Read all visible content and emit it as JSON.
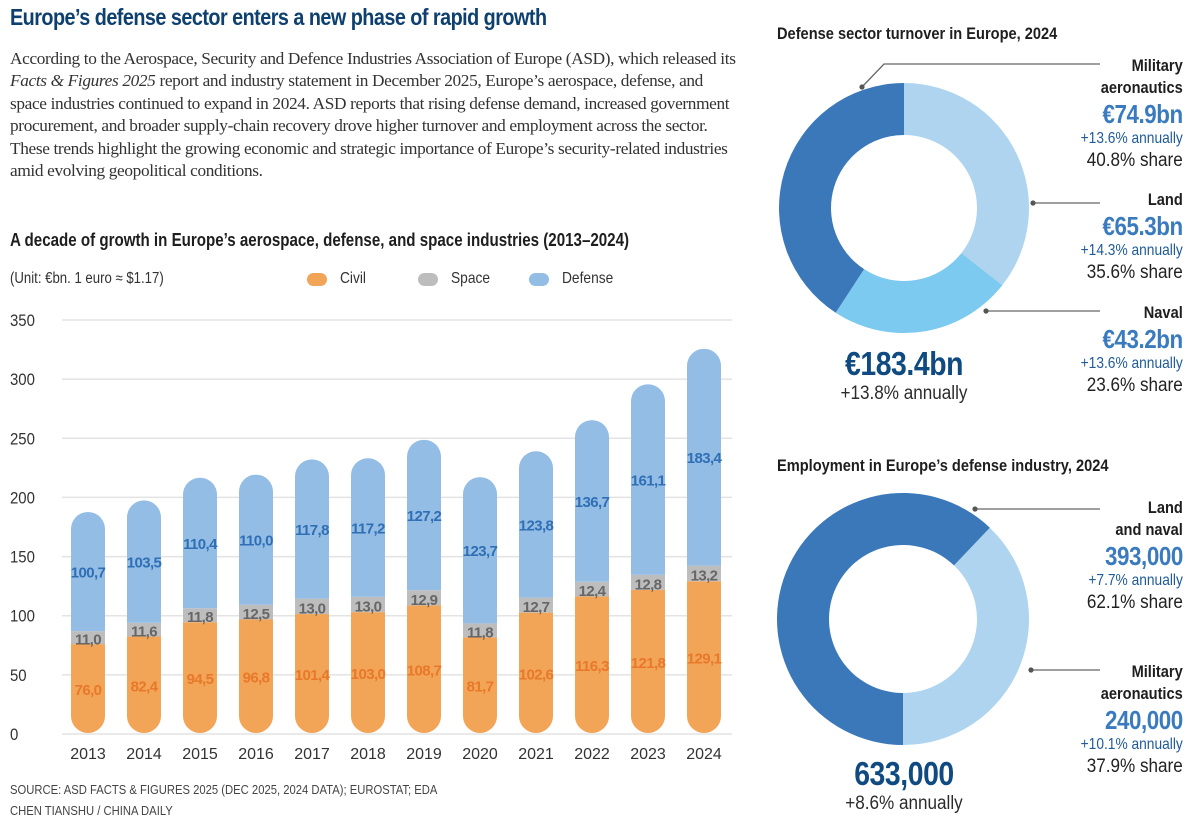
{
  "header": {
    "title": "Europe’s defense sector enters a new phase of rapid growth",
    "intro_part1": "According to the Aerospace, Security and Defence Industries Association of Europe (ASD), which released its ",
    "intro_italic": "Facts & Figures 2025",
    "intro_part2": " report and industry statement in December 2025, Europe’s aerospace, defense, and space industries continued to expand in 2024. ASD reports that rising defense demand, increased government procurement, and broader supply-chain recovery drove higher turnover and employment across the sector. These trends highlight the growing economic and strategic importance of Europe’s security-related industries amid evolving geopolitical conditions."
  },
  "footer": {
    "source": "SOURCE: ASD FACTS & FIGURES 2025 (DEC 2025, 2024 DATA); EUROSTAT; EDA",
    "credit": "CHEN TIANSHU / CHINA DAILY"
  },
  "colors": {
    "civil": "#f2a457",
    "space": "#bdbdbd",
    "defense": "#93bde4",
    "civil_label": "#e8782a",
    "space_label": "#666666",
    "defense_label": "#2f6fb5",
    "dark_blue": "#3a78b9",
    "light_blue": "#aed4ef",
    "mid_blue": "#7ccaef",
    "grid": "#e3e3e3"
  },
  "chart_data": [
    {
      "type": "bar",
      "stacked": true,
      "title": "A decade of growth in Europe’s aerospace, defense, and space industries (2013–2024)",
      "unit_note": "(Unit: €bn. 1 euro ≈ $1.17)",
      "xlabel": "",
      "ylabel": "",
      "ylim": [
        0,
        350
      ],
      "yticks": [
        0,
        50,
        100,
        150,
        200,
        250,
        300,
        350
      ],
      "grid": true,
      "legend_position": "top-center",
      "categories": [
        "2013",
        "2014",
        "2015",
        "2016",
        "2017",
        "2018",
        "2019",
        "2020",
        "2021",
        "2022",
        "2023",
        "2024"
      ],
      "series": [
        {
          "name": "Civil",
          "color_key": "civil",
          "values": [
            76.0,
            82.4,
            94.5,
            96.8,
            101.4,
            103.0,
            108.7,
            81.7,
            102.6,
            116.3,
            121.8,
            129.1
          ],
          "labels": [
            "76,0",
            "82,4",
            "94,5",
            "96,8",
            "101,4",
            "103,0",
            "108,7",
            "81,7",
            "102,6",
            "116,3",
            "121,8",
            "129,1"
          ]
        },
        {
          "name": "Space",
          "color_key": "space",
          "values": [
            11.0,
            11.6,
            11.8,
            12.5,
            13.0,
            13.0,
            12.9,
            11.8,
            12.7,
            12.4,
            12.8,
            13.2
          ],
          "labels": [
            "11,0",
            "11,6",
            "11,8",
            "12,5",
            "13,0",
            "13,0",
            "12,9",
            "11,8",
            "12,7",
            "12,4",
            "12,8",
            "13,2"
          ]
        },
        {
          "name": "Defense",
          "color_key": "defense",
          "values": [
            100.7,
            103.5,
            110.4,
            110.0,
            117.8,
            117.2,
            127.2,
            123.7,
            123.8,
            136.7,
            161.1,
            183.4
          ],
          "labels": [
            "100,7",
            "103,5",
            "110,4",
            "110,0",
            "117,8",
            "117,2",
            "127,2",
            "123,7",
            "123,8",
            "136,7",
            "161,1",
            "183,4"
          ]
        }
      ]
    },
    {
      "type": "pie",
      "donut": true,
      "title": "Defense sector turnover in Europe, 2024",
      "total_label": "€183.4bn",
      "total_growth": "+13.8% annually",
      "slices": [
        {
          "name": "Land",
          "value": 65.3,
          "share": 35.6,
          "value_label": "€65.3bn",
          "growth": "+14.3% annually",
          "share_label": "35.6% share",
          "color_key": "light_blue"
        },
        {
          "name": "Naval",
          "value": 43.2,
          "share": 23.6,
          "value_label": "€43.2bn",
          "growth": "+13.6% annually",
          "share_label": "23.6% share",
          "color_key": "mid_blue"
        },
        {
          "name": "Military aeronautics",
          "value": 74.9,
          "share": 40.8,
          "value_label": "€74.9bn",
          "growth": "+13.6% annually",
          "share_label": "40.8% share",
          "color_key": "dark_blue"
        }
      ],
      "callout_names": {
        "mil_line1": "Military",
        "mil_line2": "aeronautics",
        "land": "Land",
        "naval": "Naval"
      }
    },
    {
      "type": "pie",
      "donut": true,
      "title": "Employment in Europe’s defense industry, 2024",
      "total_label": "633,000",
      "total_growth": "+8.6% annually",
      "slices": [
        {
          "name": "Military aeronautics",
          "value": 240000,
          "share": 37.9,
          "value_label": "240,000",
          "growth": "+10.1% annually",
          "share_label": "37.9% share",
          "color_key": "light_blue"
        },
        {
          "name": "Land and naval",
          "value": 393000,
          "share": 62.1,
          "value_label": "393,000",
          "growth": "+7.7% annually",
          "share_label": "62.1% share",
          "color_key": "dark_blue"
        }
      ],
      "callout_names": {
        "ln_line1": "Land",
        "ln_line2": "and naval",
        "mil_line1": "Military",
        "mil_line2": "aeronautics"
      }
    }
  ]
}
